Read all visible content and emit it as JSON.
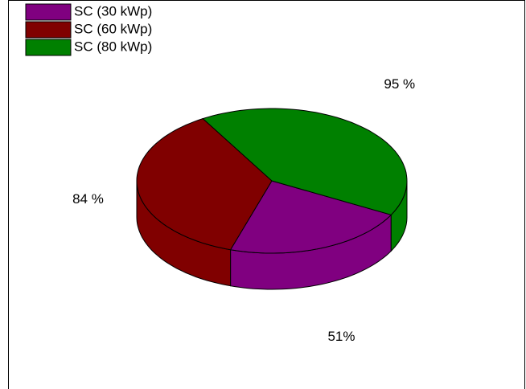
{
  "chart_data": {
    "type": "pie3d",
    "categories": [
      "SC (30 kWp)",
      "SC (60 kWp)",
      "SC (80 kWp)"
    ],
    "values": [
      51,
      84,
      95
    ],
    "value_labels": [
      "51%",
      "84 %",
      "95 %"
    ],
    "colors": [
      "#800080",
      "#800000",
      "#008000"
    ],
    "legend": "top-left"
  }
}
